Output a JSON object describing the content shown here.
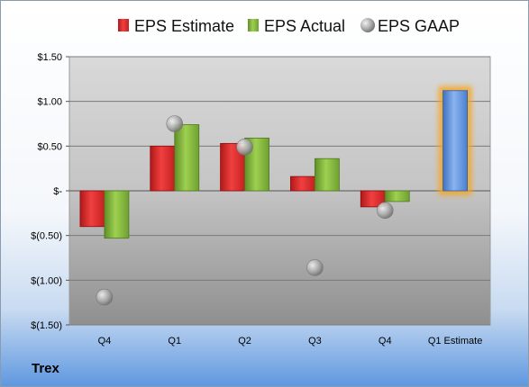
{
  "company": "Trex",
  "chart_data": {
    "type": "bar",
    "title": "",
    "xlabel": "",
    "ylabel": "",
    "categories": [
      "Q4",
      "Q1",
      "Q2",
      "Q3",
      "Q4",
      "Q1 Estimate"
    ],
    "ylim": [
      -1.5,
      1.5
    ],
    "yticks": [
      1.5,
      1.0,
      0.5,
      0,
      -0.5,
      -1.0,
      -1.5
    ],
    "ytick_labels": [
      "$1.50",
      "$1.00",
      "$0.50",
      "$-",
      "$(0.50)",
      "$(1.00)",
      "$(1.50)"
    ],
    "legend_position": "top",
    "grid": true,
    "series": [
      {
        "name": "EPS Estimate",
        "kind": "bar",
        "color": "#d42b2b",
        "values": [
          -0.4,
          0.5,
          0.53,
          0.16,
          -0.18,
          null
        ]
      },
      {
        "name": "EPS Actual",
        "kind": "bar",
        "color": "#7fb33c",
        "values": [
          -0.53,
          0.74,
          0.59,
          0.36,
          -0.12,
          null
        ]
      },
      {
        "name": "EPS GAAP",
        "kind": "marker",
        "color": "#a6a6a6",
        "values": [
          -1.19,
          0.75,
          0.49,
          -0.86,
          -0.22,
          null
        ]
      }
    ],
    "estimate": {
      "category_index": 5,
      "value": 1.12,
      "color": "#5b8fd8",
      "highlight": "#f5a623"
    }
  }
}
